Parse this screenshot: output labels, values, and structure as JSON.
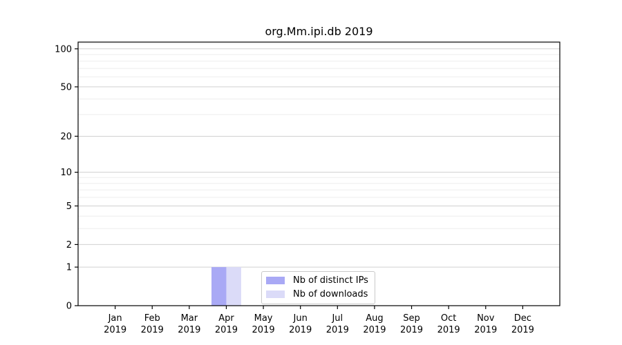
{
  "figure": {
    "background": "#ffffff"
  },
  "chart_data": {
    "type": "bar",
    "title": "org.Mm.ipi.db 2019",
    "year_label": "2019",
    "categories": [
      "Jan",
      "Feb",
      "Mar",
      "Apr",
      "May",
      "Jun",
      "Jul",
      "Aug",
      "Sep",
      "Oct",
      "Nov",
      "Dec"
    ],
    "series": [
      {
        "name": "Nb of distinct IPs",
        "color": "#a9a9f5",
        "values": [
          0,
          0,
          0,
          1,
          0,
          0,
          0,
          0,
          0,
          0,
          0,
          0
        ]
      },
      {
        "name": "Nb of downloads",
        "color": "#dbdbf8",
        "values": [
          0,
          0,
          0,
          1,
          0,
          0,
          0,
          0,
          0,
          0,
          0,
          0
        ]
      }
    ],
    "xlabel": "",
    "ylabel": "",
    "yscale": "log1p",
    "ylim": [
      0,
      113
    ],
    "yticks": [
      0,
      1,
      2,
      5,
      10,
      20,
      50,
      100
    ],
    "yticks_minor": [
      3,
      4,
      6,
      7,
      8,
      9,
      30,
      40,
      60,
      70,
      80,
      90,
      110
    ],
    "grid": "horizontal-on",
    "legend_position": "inside-lower-center",
    "colors": {
      "axis": "#000000",
      "major_grid": "#d0d0d0",
      "minor_grid": "#ededed",
      "text": "#000000"
    }
  }
}
